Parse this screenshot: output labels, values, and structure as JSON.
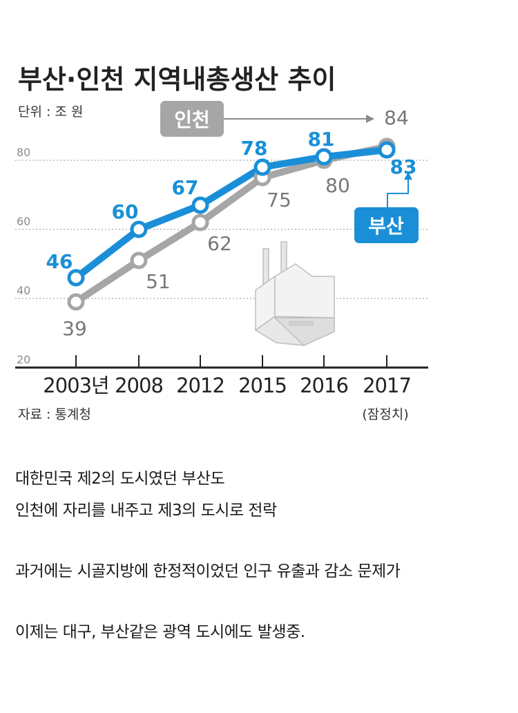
{
  "chart_data": {
    "type": "line",
    "title": "부산·인천 지역내총생산 추이",
    "unit_label": "단위 : 조 원",
    "source_label": "자료 : 통계청",
    "categories": [
      "2003년",
      "2008",
      "2012",
      "2015",
      "2016",
      "2017"
    ],
    "x_note": "(잠정치)",
    "y_ticks": [
      "80",
      "60",
      "40",
      "20"
    ],
    "ylim": [
      20,
      84
    ],
    "grid": true,
    "series": [
      {
        "name": "부산",
        "color": "#1a8fd8",
        "values": [
          46,
          60,
          67,
          78,
          81,
          83
        ],
        "value_labels": [
          "46",
          "60",
          "67",
          "78",
          "81",
          "83"
        ]
      },
      {
        "name": "인천",
        "color": "#a6a6a6",
        "values": [
          39,
          51,
          62,
          75,
          80,
          84
        ],
        "value_labels": [
          "39",
          "51",
          "62",
          "75",
          "80",
          "84"
        ]
      }
    ]
  },
  "captions": [
    "대한민국 제2의 도시였던 부산도",
    "인천에 자리를 내주고 제3의 도시로 전락",
    "과거에는 시골지방에 한정적이었던 인구 유출과 감소 문제가",
    "이제는 대구, 부산같은 광역 도시에도 발생중."
  ],
  "colors": {
    "busan": "#1a8fd8",
    "incheon": "#a6a6a6",
    "grid": "#b5b5b5",
    "axis": "#222222"
  }
}
